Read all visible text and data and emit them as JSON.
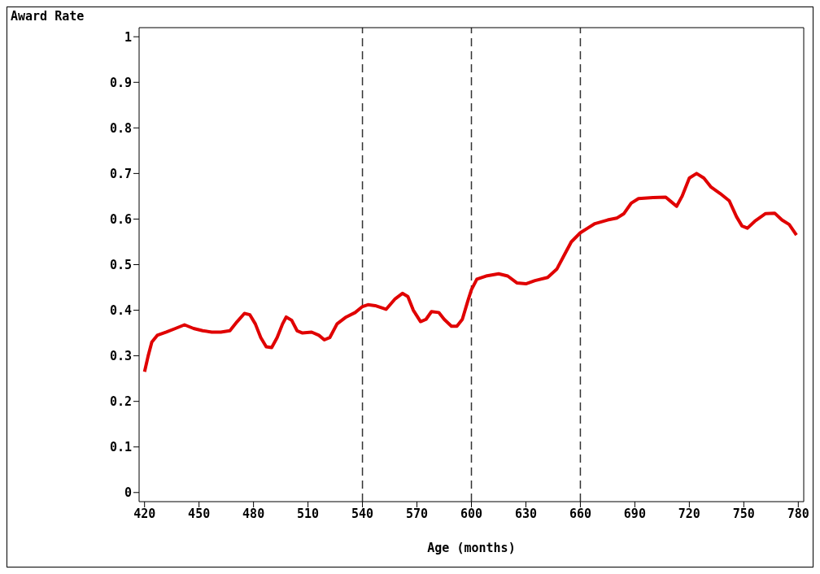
{
  "chart_data": {
    "type": "line",
    "ylabel": "Award Rate",
    "xlabel": "Age (months)",
    "x": [
      420,
      422,
      424,
      427,
      432,
      437,
      442,
      447,
      452,
      457,
      462,
      467,
      471,
      475,
      478,
      481,
      484,
      487,
      490,
      493,
      496,
      498,
      501,
      504,
      507,
      512,
      516,
      519,
      522,
      526,
      531,
      536,
      540,
      543,
      547,
      553,
      558,
      562,
      565,
      568,
      572,
      575,
      578,
      582,
      585,
      589,
      592,
      595,
      598,
      600,
      603,
      608,
      615,
      620,
      625,
      630,
      635,
      642,
      647,
      651,
      655,
      660,
      664,
      668,
      675,
      680,
      684,
      688,
      692,
      700,
      707,
      710,
      713,
      716,
      720,
      724,
      728,
      732,
      737,
      742,
      746,
      749,
      752,
      756,
      762,
      767,
      771,
      775,
      779
    ],
    "series": [
      {
        "color": "#e00000",
        "values": [
          0.265,
          0.3,
          0.33,
          0.345,
          0.352,
          0.36,
          0.368,
          0.36,
          0.355,
          0.352,
          0.352,
          0.355,
          0.375,
          0.393,
          0.39,
          0.37,
          0.34,
          0.32,
          0.318,
          0.34,
          0.37,
          0.385,
          0.378,
          0.355,
          0.35,
          0.352,
          0.345,
          0.335,
          0.34,
          0.37,
          0.385,
          0.395,
          0.408,
          0.412,
          0.41,
          0.402,
          0.425,
          0.437,
          0.43,
          0.4,
          0.375,
          0.38,
          0.397,
          0.395,
          0.38,
          0.365,
          0.365,
          0.38,
          0.42,
          0.445,
          0.468,
          0.475,
          0.48,
          0.475,
          0.46,
          0.458,
          0.465,
          0.472,
          0.49,
          0.52,
          0.55,
          0.57,
          0.58,
          0.59,
          0.598,
          0.602,
          0.612,
          0.635,
          0.645,
          0.647,
          0.648,
          0.638,
          0.628,
          0.65,
          0.69,
          0.7,
          0.69,
          0.67,
          0.656,
          0.64,
          0.605,
          0.585,
          0.58,
          0.595,
          0.612,
          0.613,
          0.598,
          0.588,
          0.565
        ]
      }
    ],
    "xlim": [
      417,
      783
    ],
    "ylim": [
      -0.02,
      1.02
    ],
    "xticks": [
      420,
      450,
      480,
      510,
      540,
      570,
      600,
      630,
      660,
      690,
      720,
      750,
      780
    ],
    "yticks": [
      0,
      0.1,
      0.2,
      0.3,
      0.4,
      0.5,
      0.6,
      0.7,
      0.8,
      0.9,
      1
    ],
    "ref_lines": [
      {
        "axis": "x",
        "value": 540,
        "color": "#333333",
        "line_style": "dashed"
      },
      {
        "axis": "x",
        "value": 600,
        "color": "#333333",
        "line_style": "dashed"
      },
      {
        "axis": "x",
        "value": 660,
        "color": "#333333",
        "line_style": "dashed"
      }
    ],
    "grid": false,
    "legend": false,
    "marker": "none",
    "line_style": "solid"
  }
}
